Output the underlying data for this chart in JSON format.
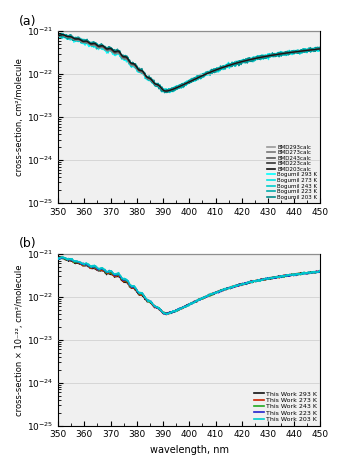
{
  "panel_a_label": "(a)",
  "panel_b_label": "(b)",
  "xlabel": "wavelength, nm",
  "ylabel_a": "cross-section, cm²/molecule",
  "ylabel_b": "cross-section × 10⁻²², cm²/molecule",
  "xlim": [
    350,
    450
  ],
  "ylim_a": [
    1e-25,
    1e-21
  ],
  "ylim_b": [
    1e-25,
    1e-21
  ],
  "legend_a": [
    "BMD293calc",
    "BMD273calc",
    "BMD243calc",
    "BMD223calc",
    "BMD203calc",
    "Bogumil 293 K",
    "Bogumil 273 K",
    "Bogumil 243 K",
    "Bogumil 223 K",
    "Bogumil 203 K"
  ],
  "legend_b": [
    "This Work 293 K",
    "This Work 273 K",
    "This Work 243 K",
    "This Work 223 K",
    "This Work 203 K"
  ],
  "bmd_colors": [
    "#999999",
    "#777777",
    "#555555",
    "#333333",
    "#111111"
  ],
  "bogumil_colors": [
    "#00FFFF",
    "#00E5E5",
    "#00CCCC",
    "#00AAAA",
    "#008888"
  ],
  "work_colors": [
    "#111111",
    "#CC2200",
    "#22AA22",
    "#2222CC",
    "#00CCCC"
  ],
  "background": "#f0f0f0",
  "grid_color": "#cccccc"
}
